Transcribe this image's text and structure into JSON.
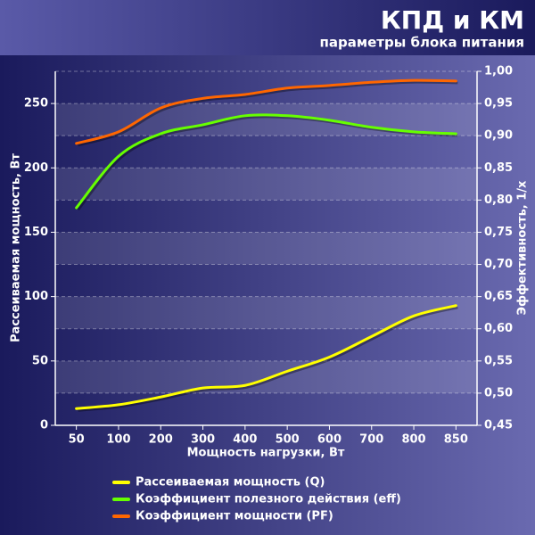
{
  "chart_data": {
    "type": "line",
    "title": "КПД и КМ",
    "subtitle": "параметры блока питания",
    "xlabel": "Мощность нагрузки, Вт",
    "ylabel": "Рассеиваемая мощность, Вт",
    "y2label": "Эффективность, 1/x",
    "categories": [
      "50",
      "100",
      "200",
      "300",
      "400",
      "500",
      "600",
      "700",
      "800",
      "850"
    ],
    "ylim": [
      0,
      275
    ],
    "yticks": [
      0,
      50,
      100,
      150,
      200,
      250
    ],
    "y2lim": [
      0.45,
      1.0
    ],
    "y2ticks": [
      {
        "value": 0.45,
        "label": "0,45"
      },
      {
        "value": 0.5,
        "label": "0,50"
      },
      {
        "value": 0.55,
        "label": "0,55"
      },
      {
        "value": 0.6,
        "label": "0,60"
      },
      {
        "value": 0.65,
        "label": "0,65"
      },
      {
        "value": 0.7,
        "label": "0,70"
      },
      {
        "value": 0.75,
        "label": "0,75"
      },
      {
        "value": 0.8,
        "label": "0,80"
      },
      {
        "value": 0.85,
        "label": "0,85"
      },
      {
        "value": 0.9,
        "label": "0,90"
      },
      {
        "value": 0.95,
        "label": "0,95"
      },
      {
        "value": 1.0,
        "label": "1,00"
      }
    ],
    "grid": true,
    "series": [
      {
        "name": "Рассеиваемая мощность (Q)",
        "color": "#ffff00",
        "values": [
          13,
          16,
          22,
          29,
          31,
          42,
          53,
          69,
          85,
          93
        ]
      },
      {
        "name": "Коэффициент полезного действия (eff)",
        "color": "#66ff00",
        "axis": "y2",
        "values": [
          0.788,
          0.868,
          0.903,
          0.917,
          0.931,
          0.931,
          0.924,
          0.913,
          0.906,
          0.903
        ]
      },
      {
        "name": "Коэффициент мощности (PF)",
        "color": "#ff6600",
        "axis": "y2",
        "values": [
          0.888,
          0.906,
          0.943,
          0.958,
          0.964,
          0.974,
          0.978,
          0.983,
          0.986,
          0.985
        ]
      }
    ]
  }
}
